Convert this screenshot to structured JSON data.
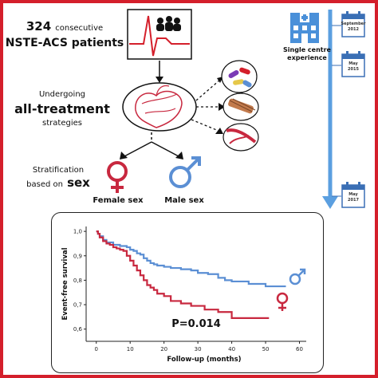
{
  "header": {
    "count": "324",
    "count_suffix": "consecutive",
    "population": "NSTE-ACS patients"
  },
  "treatment": {
    "line1": "Undergoing",
    "line2": "all-treatment",
    "line3": "strategies"
  },
  "stratification": {
    "line1": "Stratification",
    "line2_prefix": "based on",
    "line2_emph": "sex"
  },
  "groups": {
    "female_label": "Female sex",
    "male_label": "Male sex"
  },
  "timeline": {
    "centre_label_1": "Single centre",
    "centre_label_2": "experience",
    "events": [
      {
        "month": "September",
        "year": "2012"
      },
      {
        "month": "May",
        "year": "2015"
      },
      {
        "month": "May",
        "year": "2017"
      }
    ]
  },
  "colors": {
    "female": "#c8283f",
    "male": "#5b8fd4",
    "border": "#d41f2b",
    "timeline": "#5b9fe0",
    "hospital": "#4a90d9"
  },
  "icons": [
    "ecg-group-icon",
    "heart-icon",
    "pills-icon",
    "stent-icon",
    "artery-icon",
    "female-symbol-icon",
    "male-symbol-icon",
    "hospital-icon",
    "calendar-icon"
  ],
  "chart_data": {
    "type": "line",
    "xlabel": "Follow-up (months)",
    "ylabel": "Event-free survival",
    "xlim": [
      -3,
      62
    ],
    "ylim": [
      0.55,
      1.02
    ],
    "xticks": [
      0,
      10,
      20,
      30,
      40,
      50,
      60
    ],
    "yticks": [
      0.6,
      0.7,
      0.8,
      0.9,
      1.0
    ],
    "ytick_labels": [
      "0,6",
      "0,7",
      "0,8",
      "0,9",
      "1,0"
    ],
    "annotation": "P=0.014",
    "series": [
      {
        "group": "male",
        "color": "#5b8fd4",
        "x": [
          0,
          0.5,
          1,
          2,
          3,
          5,
          7,
          9,
          10,
          11,
          12,
          13,
          14,
          15,
          16,
          17,
          18,
          20,
          22,
          25,
          28,
          30,
          33,
          36,
          38,
          40,
          45,
          50,
          56
        ],
        "y": [
          1.0,
          0.99,
          0.98,
          0.965,
          0.955,
          0.945,
          0.94,
          0.935,
          0.925,
          0.92,
          0.91,
          0.905,
          0.89,
          0.88,
          0.87,
          0.865,
          0.86,
          0.855,
          0.85,
          0.845,
          0.84,
          0.83,
          0.825,
          0.81,
          0.8,
          0.795,
          0.785,
          0.775,
          0.775
        ]
      },
      {
        "group": "female",
        "color": "#c8283f",
        "x": [
          0,
          0.5,
          1,
          2,
          3,
          4,
          5,
          6,
          7,
          8,
          9,
          10,
          11,
          12,
          13,
          14,
          15,
          16,
          17,
          18,
          20,
          22,
          25,
          28,
          32,
          36,
          40,
          45,
          51
        ],
        "y": [
          1.0,
          0.99,
          0.975,
          0.96,
          0.95,
          0.945,
          0.935,
          0.93,
          0.925,
          0.92,
          0.9,
          0.88,
          0.86,
          0.84,
          0.82,
          0.8,
          0.78,
          0.77,
          0.76,
          0.745,
          0.735,
          0.715,
          0.705,
          0.695,
          0.68,
          0.67,
          0.645,
          0.645,
          0.645
        ]
      }
    ]
  }
}
